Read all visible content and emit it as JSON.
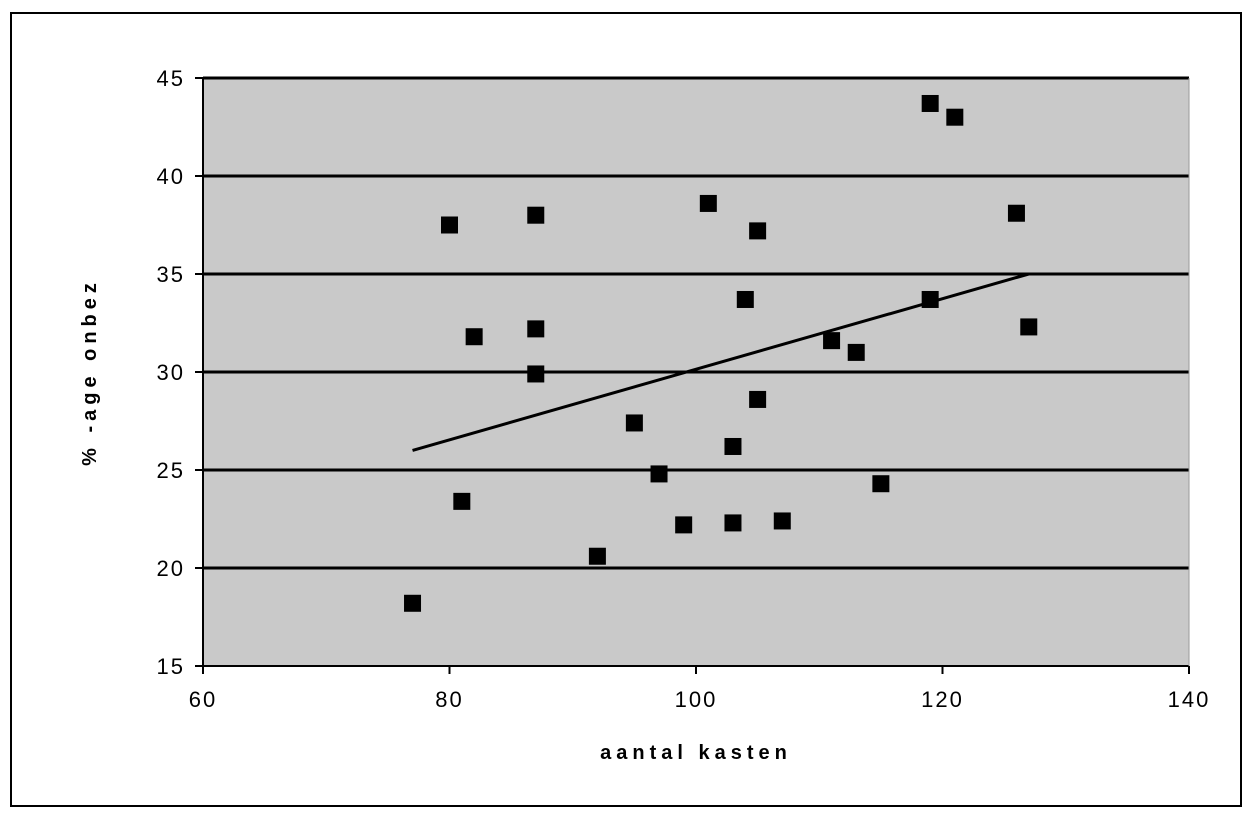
{
  "chart_data": {
    "type": "scatter",
    "title": "",
    "xlabel": "aantal kasten",
    "ylabel": "% -age onbez",
    "xlim": [
      60,
      140
    ],
    "ylim": [
      15,
      45
    ],
    "x_ticks": [
      60,
      80,
      100,
      120,
      140
    ],
    "y_ticks": [
      15,
      20,
      25,
      30,
      35,
      40,
      45
    ],
    "x_tick_labels": [
      "60",
      "80",
      "100",
      "120",
      "140"
    ],
    "y_tick_labels": [
      "15",
      "20",
      "25",
      "30",
      "35",
      "40",
      "45"
    ],
    "grid": "horizontal",
    "legend": "none",
    "colors": {
      "plot_background": "#c9c9c9",
      "marker": "#000000",
      "gridline": "#000000"
    },
    "series": [
      {
        "marker": "square",
        "x": [
          77,
          80,
          81,
          82,
          87,
          87,
          87,
          92,
          95,
          97,
          99,
          101,
          103,
          103,
          104,
          105,
          105,
          107,
          111,
          113,
          115,
          119,
          119,
          121,
          126,
          127
        ],
        "y": [
          18.2,
          37.5,
          23.4,
          31.8,
          38.0,
          32.2,
          29.9,
          20.6,
          27.4,
          24.8,
          22.2,
          38.6,
          26.2,
          22.3,
          33.7,
          37.2,
          28.6,
          22.4,
          31.6,
          31.0,
          24.3,
          43.7,
          33.7,
          43.0,
          38.1,
          32.3
        ]
      }
    ],
    "trendline": {
      "type": "linear",
      "x": [
        77,
        127
      ],
      "y": [
        26.0,
        35.0
      ]
    }
  }
}
